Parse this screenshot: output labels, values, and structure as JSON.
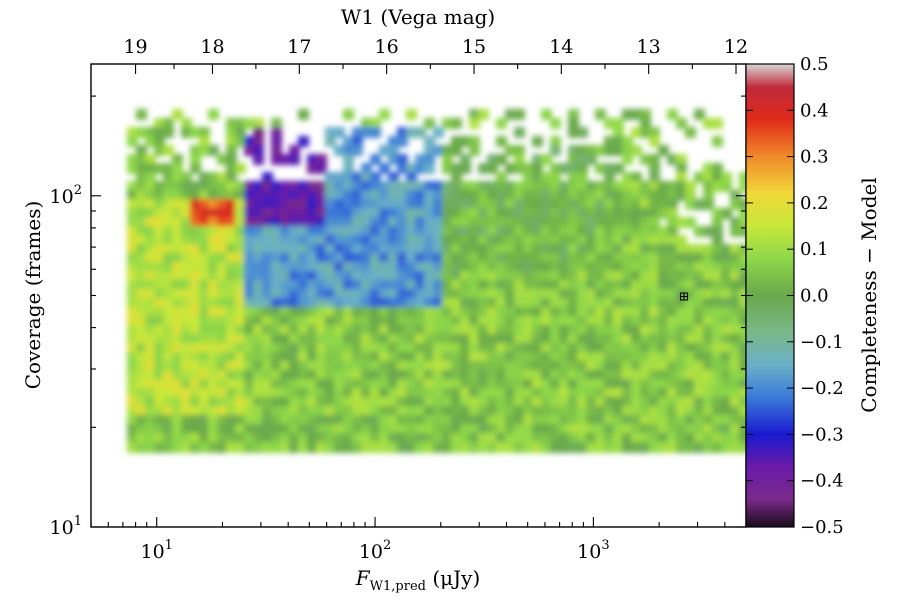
{
  "chart_data": {
    "type": "heatmap",
    "title": "",
    "xlabel_main": "F",
    "xlabel_sub": "W1,pred",
    "xlabel_units": " (μJy)",
    "ylabel": "Coverage (frames)",
    "x2label": "W1 (Vega mag)",
    "colorbar_label": "Completeness − Model",
    "x_scale": "log",
    "y_scale": "log",
    "xlim": [
      5,
      5000
    ],
    "ylim": [
      10,
      250
    ],
    "x_ticks": [
      {
        "value": 10,
        "base": "10",
        "exp": "1"
      },
      {
        "value": 100,
        "base": "10",
        "exp": "2"
      },
      {
        "value": 1000,
        "base": "10",
        "exp": "3"
      }
    ],
    "y_ticks": [
      {
        "value": 10,
        "base": "10",
        "exp": "1"
      },
      {
        "value": 100,
        "base": "10",
        "exp": "2"
      }
    ],
    "x2_ticks": [
      {
        "value": 19,
        "label": "19",
        "flux": 8.0
      },
      {
        "value": 18,
        "label": "18",
        "flux": 18.0
      },
      {
        "value": 17,
        "label": "17",
        "flux": 45.0
      },
      {
        "value": 16,
        "label": "16",
        "flux": 113.0
      },
      {
        "value": 15,
        "label": "15",
        "flux": 284.0
      },
      {
        "value": 14,
        "label": "14",
        "flux": 713.0
      },
      {
        "value": 13,
        "label": "13",
        "flux": 1791.0
      },
      {
        "value": 12,
        "label": "12",
        "flux": 4500.0
      }
    ],
    "colorbar": {
      "min": -0.5,
      "max": 0.5,
      "ticks": [
        "0.5",
        "0.4",
        "0.3",
        "0.2",
        "0.1",
        "0.0",
        "−0.1",
        "−0.2",
        "−0.3",
        "−0.4",
        "−0.5"
      ],
      "colormap": [
        {
          "v": -0.5,
          "color": "#1a0a1a"
        },
        {
          "v": -0.44,
          "color": "#7a2a8a"
        },
        {
          "v": -0.37,
          "color": "#6a1aa8"
        },
        {
          "v": -0.3,
          "color": "#1a1ad0"
        },
        {
          "v": -0.22,
          "color": "#3a7ad8"
        },
        {
          "v": -0.15,
          "color": "#6ab0c8"
        },
        {
          "v": -0.08,
          "color": "#7ab88a"
        },
        {
          "v": 0.0,
          "color": "#6aa84a"
        },
        {
          "v": 0.08,
          "color": "#8ed84a"
        },
        {
          "v": 0.15,
          "color": "#c8e83a"
        },
        {
          "v": 0.22,
          "color": "#f0d838"
        },
        {
          "v": 0.3,
          "color": "#f08a2a"
        },
        {
          "v": 0.38,
          "color": "#e02a1a"
        },
        {
          "v": 0.45,
          "color": "#c02a3a"
        },
        {
          "v": 0.5,
          "color": "#d8d8d8"
        }
      ]
    },
    "regions": [
      {
        "x": [
          7,
          5000
        ],
        "y": [
          17,
          180
        ],
        "value": 0.05,
        "note": "green background"
      },
      {
        "x": [
          7,
          25
        ],
        "y": [
          22,
          95
        ],
        "value": 0.13
      },
      {
        "x": [
          25,
          4500
        ],
        "y": [
          22,
          45
        ],
        "value": 0.06
      },
      {
        "x": [
          25,
          200
        ],
        "y": [
          45,
          160
        ],
        "value": -0.18
      },
      {
        "x": [
          25,
          60
        ],
        "y": [
          80,
          160
        ],
        "value": -0.38
      },
      {
        "x": [
          200,
          1200
        ],
        "y": [
          60,
          160
        ],
        "value": 0.02
      },
      {
        "x": [
          14,
          22
        ],
        "y": [
          80,
          100
        ],
        "value": 0.35
      }
    ],
    "marker": {
      "x": 2600,
      "y": 50,
      "symbol": "⊞"
    }
  }
}
